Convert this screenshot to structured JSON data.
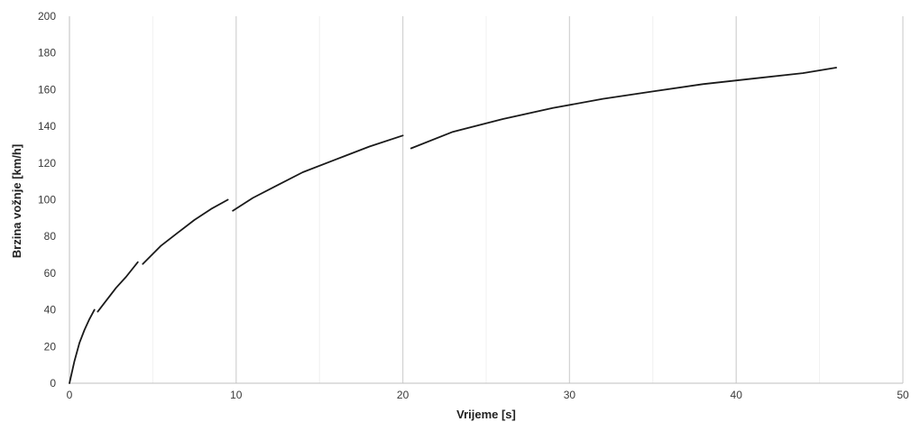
{
  "chart_data": {
    "type": "line",
    "xlabel": "Vrijeme [s]",
    "ylabel": "Brzina vožnje [km/h]",
    "xlim": [
      0,
      50
    ],
    "ylim": [
      0,
      200
    ],
    "x_ticks": [
      0,
      10,
      20,
      30,
      40,
      50
    ],
    "y_ticks": [
      0,
      20,
      40,
      60,
      80,
      100,
      120,
      140,
      160,
      180,
      200
    ],
    "x_minor_gridlines": [
      5,
      15,
      25,
      35,
      45
    ],
    "grid": true,
    "legend": false,
    "series_color": "#1a1a1a",
    "segments": [
      {
        "gear": 1,
        "points": [
          [
            0,
            0
          ],
          [
            0.3,
            12
          ],
          [
            0.6,
            22
          ],
          [
            0.9,
            29
          ],
          [
            1.2,
            35
          ],
          [
            1.5,
            40
          ]
        ]
      },
      {
        "gear": 2,
        "points": [
          [
            1.7,
            39
          ],
          [
            2.2,
            45
          ],
          [
            2.8,
            52
          ],
          [
            3.4,
            58
          ],
          [
            4.1,
            66
          ]
        ]
      },
      {
        "gear": 3,
        "points": [
          [
            4.4,
            65
          ],
          [
            5.5,
            75
          ],
          [
            6.5,
            82
          ],
          [
            7.5,
            89
          ],
          [
            8.5,
            95
          ],
          [
            9.5,
            100
          ]
        ]
      },
      {
        "gear": 4,
        "points": [
          [
            9.8,
            94
          ],
          [
            11,
            101
          ],
          [
            12.5,
            108
          ],
          [
            14,
            115
          ],
          [
            16,
            122
          ],
          [
            18,
            129
          ],
          [
            20,
            135
          ]
        ]
      },
      {
        "gear": 5,
        "points": [
          [
            20.5,
            128
          ],
          [
            23,
            137
          ],
          [
            26,
            144
          ],
          [
            29,
            150
          ],
          [
            32,
            155
          ],
          [
            35,
            159
          ],
          [
            38,
            163
          ],
          [
            41,
            166
          ],
          [
            44,
            169
          ],
          [
            46,
            172
          ]
        ]
      }
    ]
  }
}
